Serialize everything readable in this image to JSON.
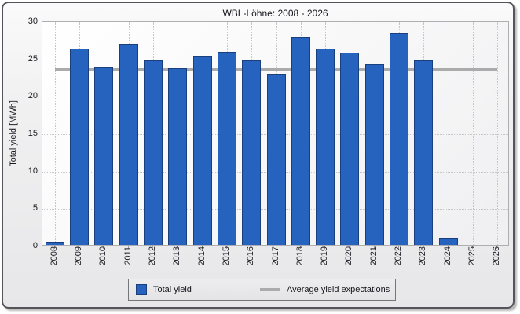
{
  "window": {
    "title": "WBL-Löhne: 2008 - 2026"
  },
  "chart_data": {
    "type": "bar",
    "title": "WBL-Löhne: 2008 - 2026",
    "xlabel": "",
    "ylabel": "Total yield [MWh]",
    "ylim": [
      0,
      30
    ],
    "yticks": [
      0,
      5,
      10,
      15,
      20,
      25,
      30
    ],
    "grid": true,
    "legend_position": "bottom",
    "categories": [
      "2008",
      "2009",
      "2010",
      "2011",
      "2012",
      "2013",
      "2014",
      "2015",
      "2016",
      "2017",
      "2018",
      "2019",
      "2020",
      "2021",
      "2022",
      "2023",
      "2024",
      "2025",
      "2026"
    ],
    "series": [
      {
        "name": "Total yield",
        "kind": "bar",
        "values": [
          0.4,
          26.2,
          23.8,
          26.9,
          24.7,
          23.6,
          25.3,
          25.8,
          24.6,
          22.9,
          27.8,
          26.2,
          25.7,
          24.1,
          28.3,
          24.7,
          0.9,
          0,
          0
        ]
      },
      {
        "name": "Average yield expectations",
        "kind": "line",
        "value": 23.6
      }
    ]
  },
  "colors": {
    "bar_fill": "#2563BE",
    "bar_border": "#1B3F7C",
    "average_line": "#ABABAB",
    "grid_line": "#C6C6CA",
    "plot_border": "#AEAEB2",
    "frame_border": "#54545A",
    "text": "#1C1C24"
  }
}
